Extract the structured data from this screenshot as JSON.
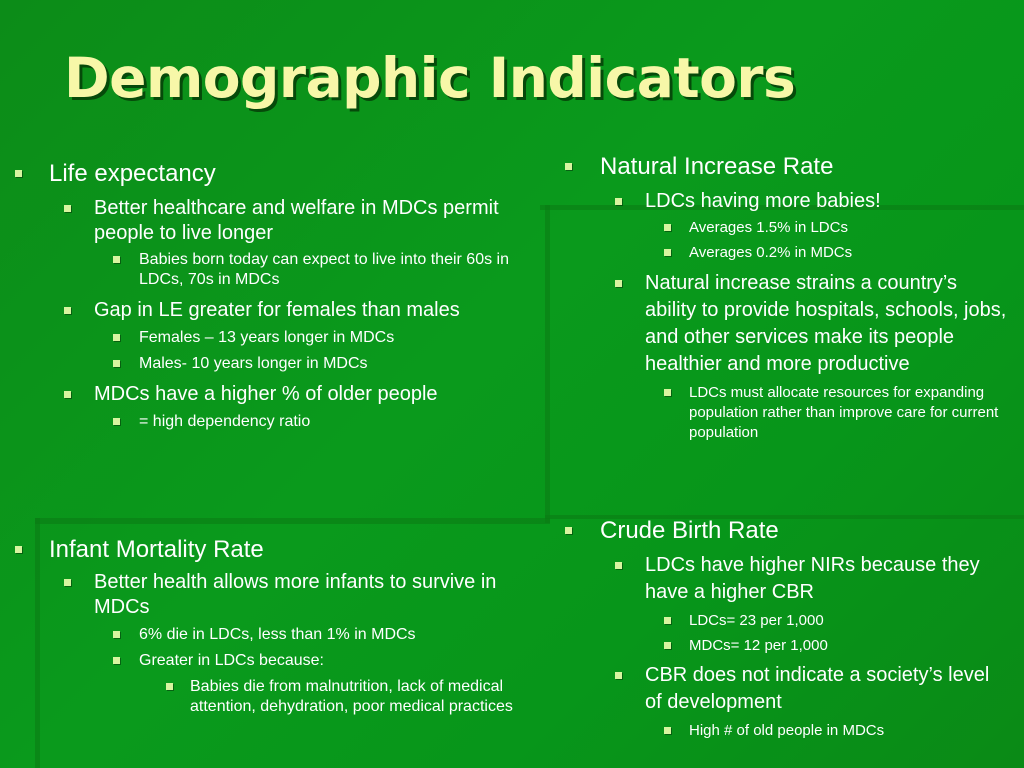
{
  "title": "Demographic Indicators",
  "left_top": {
    "heading": "Life expectancy",
    "point1": "Better healthcare and welfare in MDCs permit people to live longer",
    "point1_sub1": "Babies born today can expect to live into their 60s in LDCs, 70s in MDCs",
    "point2": "Gap in LE greater for females than males",
    "point2_sub1": "Females – 13 years longer in MDCs",
    "point2_sub2": "Males- 10 years longer in MDCs",
    "point3": "MDCs have a higher % of older people",
    "point3_sub1": "= high dependency ratio"
  },
  "left_bottom": {
    "heading": "Infant Mortality Rate",
    "point1": "Better health allows more infants to survive in MDCs",
    "point1_sub1": "6% die in LDCs, less than 1% in MDCs",
    "point1_sub2": "Greater in LDCs because:",
    "point1_sub2_sub1": "Babies die from malnutrition, lack of medical attention, dehydration, poor medical practices"
  },
  "right_top": {
    "heading": "Natural Increase Rate",
    "point1": "LDCs having more babies!",
    "point1_sub1": "Averages 1.5% in LDCs",
    "point1_sub2": "Averages 0.2% in MDCs",
    "point2": "Natural increase strains a country’s ability to provide hospitals, schools, jobs, and other services make its people healthier and more productive",
    "point2_sub1": "LDCs must allocate resources for expanding population rather than improve care for current population"
  },
  "right_bottom": {
    "heading": "Crude Birth Rate",
    "point1": "LDCs have higher NIRs because they have a higher CBR",
    "point1_sub1": "LDCs= 23 per 1,000",
    "point1_sub2": "MDCs= 12 per 1,000",
    "point2": "CBR does not indicate a society’s level of development",
    "point2_sub1": "High # of old people in MDCs"
  },
  "colors": {
    "background": "#0a9a1c",
    "title": "#f7f7a8",
    "bullet": "#d8f5a0",
    "text": "#ffffff"
  }
}
